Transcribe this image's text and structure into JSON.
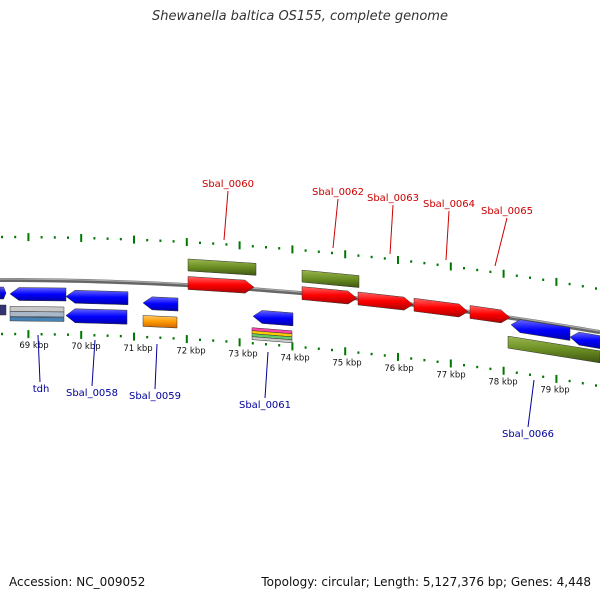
{
  "title": "Shewanella baltica OS155, complete genome",
  "footer": {
    "accession": "Accession: NC_009052",
    "summary": "Topology: circular; Length: 5,127,376 bp; Genes: 4,448"
  },
  "colors": {
    "cds_forward": "#ff0000",
    "cds_reverse": "#0000ff",
    "gene_bar": "#6b8e23",
    "label_forward": "#cc0000",
    "label_reverse": "#000099",
    "tick": "#007700",
    "backbone": "#777777",
    "rna_orange": "#ff9900",
    "pale_grey": "#c8c8c8",
    "steel_blue": "#4682b4"
  },
  "kbp_labels": [
    "69 kbp",
    "70 kbp",
    "71 kbp",
    "72 kbp",
    "73 kbp",
    "74 kbp",
    "75 kbp",
    "76 kbp",
    "77 kbp",
    "78 kbp",
    "79 kbp"
  ],
  "forward_labels": [
    "Sbal_0060",
    "Sbal_0062",
    "Sbal_0063",
    "Sbal_0064",
    "Sbal_0065"
  ],
  "reverse_labels": [
    "tdh",
    "Sbal_0058",
    "Sbal_0059",
    "Sbal_0061",
    "Sbal_0066"
  ]
}
